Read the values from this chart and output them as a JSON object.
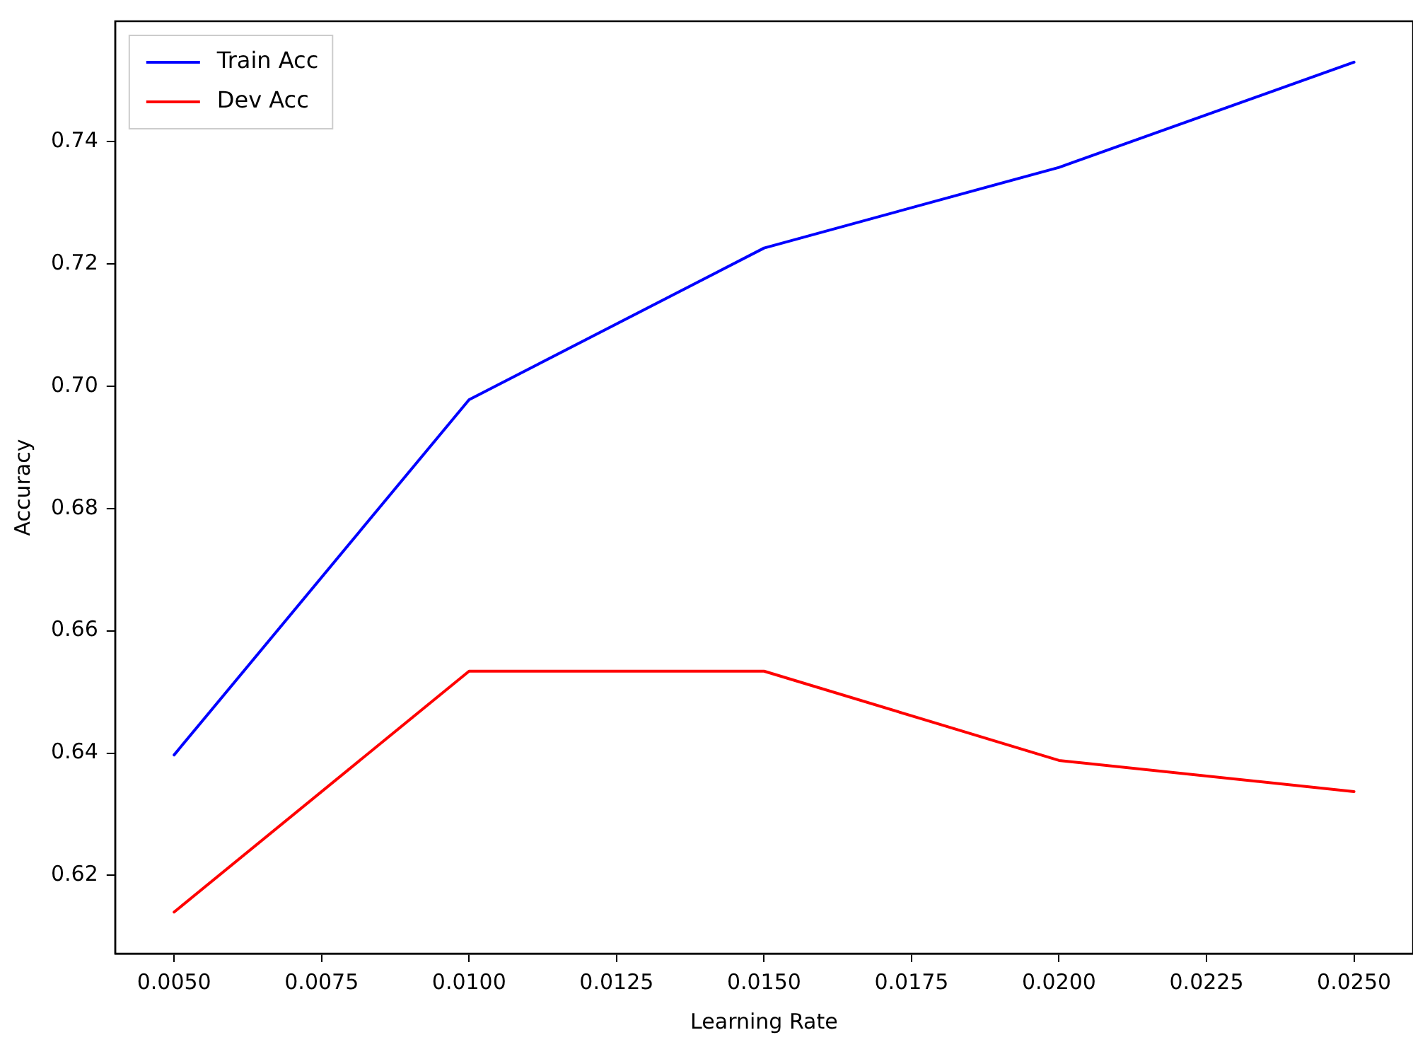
{
  "chart_data": {
    "type": "line",
    "xlabel": "Learning Rate",
    "ylabel": "Accuracy",
    "x": [
      0.005,
      0.01,
      0.015,
      0.02,
      0.025
    ],
    "series": [
      {
        "name": "Train Acc",
        "color": "#0000ff",
        "values": [
          0.6397,
          0.6978,
          0.7226,
          0.7358,
          0.753
        ]
      },
      {
        "name": "Dev Acc",
        "color": "#ff0000",
        "values": [
          0.614,
          0.6534,
          0.6534,
          0.6388,
          0.6337
        ]
      }
    ],
    "xlim": [
      0.004,
      0.026
    ],
    "xticks": [
      {
        "value": 0.005,
        "label": "0.0050"
      },
      {
        "value": 0.0075,
        "label": "0.0075"
      },
      {
        "value": 0.01,
        "label": "0.0100"
      },
      {
        "value": 0.0125,
        "label": "0.0125"
      },
      {
        "value": 0.015,
        "label": "0.0150"
      },
      {
        "value": 0.0175,
        "label": "0.0175"
      },
      {
        "value": 0.02,
        "label": "0.0200"
      },
      {
        "value": 0.0225,
        "label": "0.0225"
      },
      {
        "value": 0.025,
        "label": "0.0250"
      }
    ],
    "ylim": [
      0.6072,
      0.7597
    ],
    "yticks": [
      0.62,
      0.64,
      0.66,
      0.68,
      {
        "value": 0.7,
        "label": "0.70"
      },
      0.72,
      0.74
    ],
    "grid": false,
    "legend": "top left",
    "marker": "none",
    "line_style": "solid"
  }
}
